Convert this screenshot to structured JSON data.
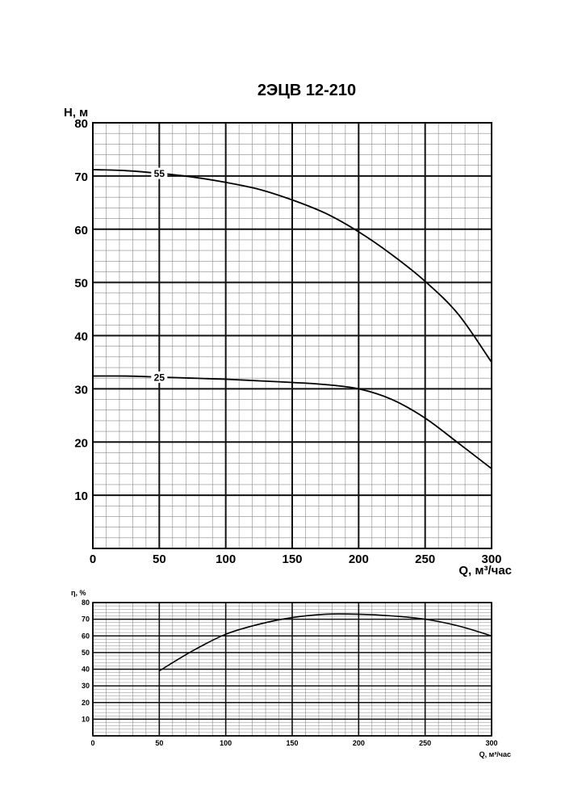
{
  "chart_data": [
    {
      "type": "line",
      "title": "2ЭЦВ 12-210",
      "xlabel": "Q, м³/час",
      "ylabel": "H, м",
      "xlim": [
        0,
        300
      ],
      "ylim": [
        0,
        80
      ],
      "x_ticks": [
        "0",
        "50",
        "100",
        "150",
        "200",
        "250",
        "300"
      ],
      "y_ticks": [
        "10",
        "20",
        "30",
        "40",
        "50",
        "60",
        "70",
        "80"
      ],
      "grid": true,
      "series": [
        {
          "name": "55",
          "x": [
            0,
            25,
            50,
            75,
            100,
            125,
            150,
            175,
            200,
            225,
            250,
            275,
            300
          ],
          "y": [
            71.2,
            71.0,
            70.5,
            69.8,
            68.8,
            67.5,
            65.5,
            63.0,
            59.5,
            55.2,
            50.2,
            44.0,
            35.0
          ]
        },
        {
          "name": "25",
          "x": [
            0,
            25,
            50,
            75,
            100,
            125,
            150,
            175,
            200,
            225,
            250,
            275,
            300
          ],
          "y": [
            32.4,
            32.4,
            32.2,
            32.0,
            31.8,
            31.5,
            31.2,
            30.8,
            30.0,
            28.0,
            24.5,
            19.8,
            15.0
          ]
        }
      ]
    },
    {
      "type": "line",
      "xlabel": "Q, м³/час",
      "ylabel": "η, %",
      "xlim": [
        0,
        300
      ],
      "ylim": [
        0,
        80
      ],
      "x_ticks": [
        "0",
        "50",
        "100",
        "150",
        "200",
        "250",
        "300"
      ],
      "y_ticks": [
        "10",
        "20",
        "30",
        "40",
        "50",
        "60",
        "70",
        "80"
      ],
      "grid": true,
      "series": [
        {
          "x": [
            50,
            75,
            100,
            125,
            150,
            175,
            200,
            225,
            250,
            275,
            300
          ],
          "y": [
            39,
            51,
            61,
            67,
            71,
            73,
            73,
            72,
            70,
            66,
            60
          ]
        }
      ]
    }
  ]
}
